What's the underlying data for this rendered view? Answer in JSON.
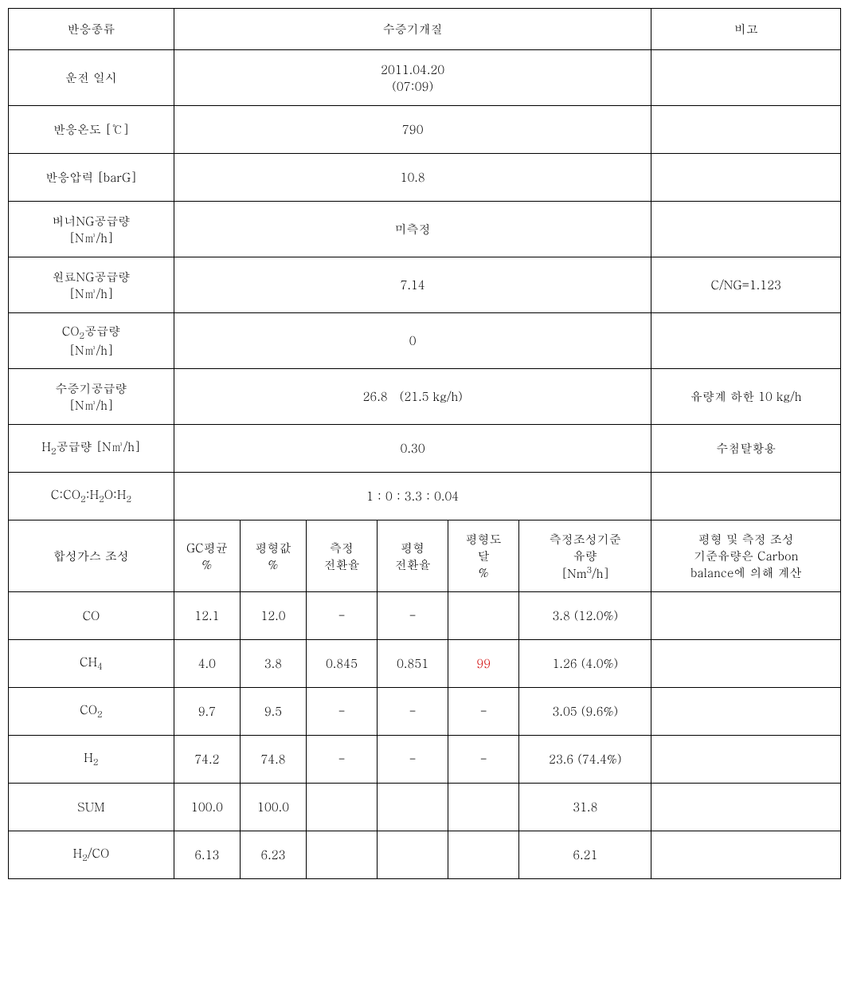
{
  "header": {
    "col1": "반응종류",
    "col2": "수증기개질",
    "col3": "비고"
  },
  "rows": [
    {
      "label": "운전  일시",
      "value_html": "2011.04.20<br>(07:09)",
      "note": ""
    },
    {
      "label": "반응온도 [℃]",
      "value": "790",
      "note": ""
    },
    {
      "label": "반응압력 [barG]",
      "value": "10.8",
      "note": ""
    },
    {
      "label_html": "버너NG공급량<br>[N㎥/h]",
      "value": "미측정",
      "note": ""
    },
    {
      "label_html": "원료NG공급량<br>[N㎥/h]",
      "value": "7.14",
      "note": "C/NG=1.123"
    },
    {
      "label_html": "CO<sub>2</sub>공급량<br>[N㎥/h]",
      "value": "0",
      "note": ""
    },
    {
      "label_html": "수증기공급량<br>[N㎥/h]",
      "value": "26.8　(21.5 kg/h)",
      "note": "유량계 하한 10 kg/h"
    },
    {
      "label_html": "H<sub>2</sub>공급량 [N㎥/h]",
      "value": "0.30",
      "note": "수첨탈황용"
    },
    {
      "label_html": "C:CO<sub>2</sub>:H<sub>2</sub>O:H<sub>2</sub>",
      "value": "1 : 0 : 3.3 : 0.04",
      "note": ""
    }
  ],
  "subheader": {
    "label": "합성가스 조성",
    "c1_html": "GC평균<br>%",
    "c2_html": "평형값<br>%",
    "c3_html": "측정<br>전환율",
    "c4_html": "평형<br>전환율",
    "c5_html": "평형도<br>달<br>%",
    "c6_html": "측정조성기준<br>유량<br>[Nm<sup>3</sup>/h]",
    "note_html": "평형 및 측정 조성<br>기준유량은 Carbon<br>balance에 의해 계산"
  },
  "data_rows": [
    {
      "label": "CO",
      "gc": "12.1",
      "eq": "12.0",
      "mc": "-",
      "ec": "-",
      "pd": "",
      "flow": "3.8 (12.0%)",
      "note": "",
      "pd_red": false
    },
    {
      "label_html": "CH<sub>4</sub>",
      "gc": "4.0",
      "eq": "3.8",
      "mc": "0.845",
      "ec": "0.851",
      "pd": "99",
      "flow": "1.26 (4.0%)",
      "note": "",
      "pd_red": true
    },
    {
      "label_html": "CO<sub>2</sub>",
      "gc": "9.7",
      "eq": "9.5",
      "mc": "-",
      "ec": "-",
      "pd": "-",
      "flow": "3.05 (9.6%)",
      "note": "",
      "pd_red": false
    },
    {
      "label_html": "H<sub>2</sub>",
      "gc": "74.2",
      "eq": "74.8",
      "mc": "-",
      "ec": "-",
      "pd": "-",
      "flow": "23.6 (74.4%)",
      "note": "",
      "pd_red": false
    },
    {
      "label": "SUM",
      "gc": "100.0",
      "eq": "100.0",
      "mc": "",
      "ec": "",
      "pd": "",
      "flow": "31.8",
      "note": "",
      "pd_red": false
    },
    {
      "label_html": "H<sub>2</sub>/CO",
      "gc": "6.13",
      "eq": "6.23",
      "mc": "",
      "ec": "",
      "pd": "",
      "flow": "6.21",
      "note": "",
      "pd_red": false
    }
  ],
  "col_widths": {
    "label": 175,
    "c1": 65,
    "c2": 65,
    "c3": 70,
    "c4": 70,
    "c5": 70,
    "c6": 130,
    "note": 200
  }
}
